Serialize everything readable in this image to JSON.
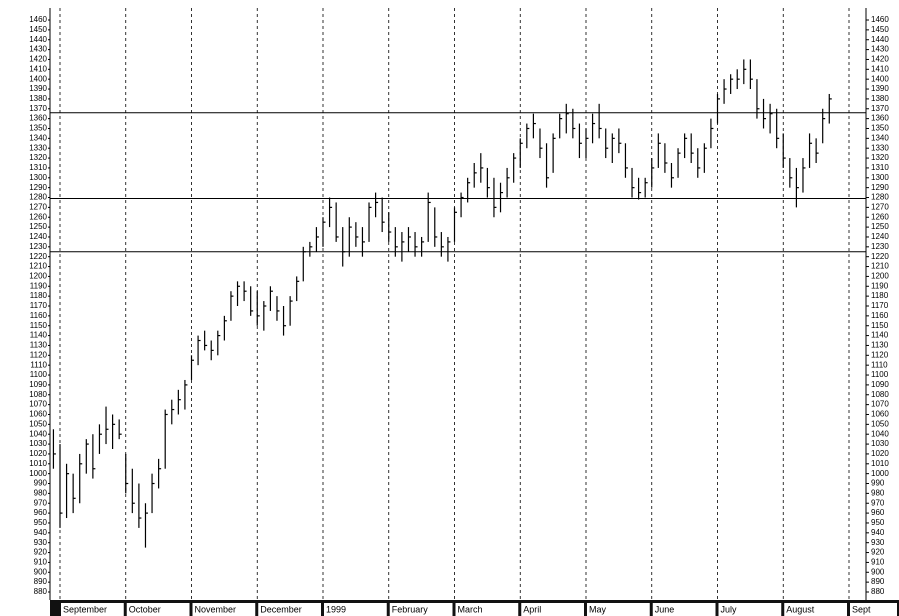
{
  "chart_data": {
    "type": "ohlc",
    "categories": [
      null,
      "September",
      null,
      null,
      null,
      null,
      null,
      null,
      null,
      null,
      null,
      "October",
      null,
      null,
      null,
      null,
      null,
      null,
      null,
      null,
      null,
      "November",
      null,
      null,
      null,
      null,
      null,
      null,
      null,
      null,
      null,
      "December",
      null,
      null,
      null,
      null,
      null,
      null,
      null,
      null,
      null,
      "1999",
      null,
      null,
      null,
      null,
      null,
      null,
      null,
      null,
      null,
      "February",
      null,
      null,
      null,
      null,
      null,
      null,
      null,
      null,
      null,
      "March",
      null,
      null,
      null,
      null,
      null,
      null,
      null,
      null,
      null,
      "April",
      null,
      null,
      null,
      null,
      null,
      null,
      null,
      null,
      null,
      "May",
      null,
      null,
      null,
      null,
      null,
      null,
      null,
      null,
      null,
      "June",
      null,
      null,
      null,
      null,
      null,
      null,
      null,
      null,
      null,
      "July",
      null,
      null,
      null,
      null,
      null,
      null,
      null,
      null,
      null,
      "August",
      null,
      null,
      null,
      null,
      null,
      null,
      null,
      null,
      null,
      "Sept"
    ],
    "high": [
      1045,
      1030,
      1010,
      1000,
      1020,
      1035,
      1040,
      1050,
      1068,
      1060,
      1055,
      1020,
      1005,
      990,
      970,
      1000,
      1015,
      1065,
      1075,
      1085,
      1095,
      1120,
      1140,
      1145,
      1135,
      1145,
      1160,
      1185,
      1195,
      1195,
      1190,
      1185,
      1175,
      1190,
      1180,
      1170,
      1180,
      1200,
      1230,
      1235,
      1250,
      1260,
      1280,
      1275,
      1250,
      1260,
      1255,
      1250,
      1275,
      1285,
      1280,
      1265,
      1250,
      1245,
      1250,
      1245,
      1240,
      1285,
      1270,
      1245,
      1240,
      1270,
      1285,
      1300,
      1315,
      1325,
      1310,
      1300,
      1295,
      1310,
      1325,
      1340,
      1355,
      1365,
      1350,
      1335,
      1345,
      1365,
      1375,
      1370,
      1355,
      1350,
      1365,
      1375,
      1350,
      1345,
      1350,
      1335,
      1310,
      1300,
      1300,
      1320,
      1345,
      1335,
      1315,
      1330,
      1345,
      1345,
      1330,
      1335,
      1360,
      1385,
      1400,
      1405,
      1410,
      1420,
      1420,
      1400,
      1380,
      1375,
      1370,
      1345,
      1320,
      1310,
      1320,
      1345,
      1340,
      1370,
      1385,
      null,
      null,
      null
    ],
    "low": [
      1005,
      945,
      955,
      960,
      970,
      1000,
      995,
      1020,
      1030,
      1025,
      1035,
      980,
      960,
      945,
      925,
      960,
      985,
      1005,
      1050,
      1060,
      1065,
      1095,
      1110,
      1125,
      1115,
      1120,
      1135,
      1155,
      1170,
      1175,
      1160,
      1150,
      1145,
      1165,
      1155,
      1140,
      1150,
      1175,
      1195,
      1220,
      1225,
      1230,
      1250,
      1235,
      1210,
      1220,
      1230,
      1220,
      1235,
      1260,
      1245,
      1235,
      1220,
      1215,
      1225,
      1220,
      1220,
      1235,
      1230,
      1220,
      1215,
      1235,
      1260,
      1275,
      1290,
      1295,
      1280,
      1260,
      1265,
      1280,
      1295,
      1310,
      1330,
      1340,
      1320,
      1290,
      1305,
      1340,
      1345,
      1340,
      1320,
      1320,
      1335,
      1340,
      1320,
      1315,
      1325,
      1300,
      1280,
      1278,
      1280,
      1290,
      1310,
      1305,
      1290,
      1300,
      1320,
      1315,
      1300,
      1305,
      1330,
      1355,
      1375,
      1385,
      1390,
      1395,
      1390,
      1360,
      1350,
      1345,
      1330,
      1310,
      1290,
      1270,
      1285,
      1310,
      1315,
      1335,
      1355,
      null,
      null,
      null
    ],
    "close": [
      1020,
      960,
      1000,
      975,
      1010,
      1030,
      1005,
      1040,
      1045,
      1050,
      1040,
      990,
      970,
      955,
      960,
      990,
      1005,
      1060,
      1065,
      1075,
      1090,
      1115,
      1135,
      1130,
      1125,
      1140,
      1155,
      1180,
      1190,
      1185,
      1165,
      1160,
      1170,
      1185,
      1165,
      1150,
      1175,
      1195,
      1225,
      1230,
      1240,
      1255,
      1270,
      1240,
      1225,
      1250,
      1240,
      1235,
      1270,
      1275,
      1255,
      1245,
      1230,
      1235,
      1240,
      1230,
      1235,
      1275,
      1240,
      1230,
      1235,
      1265,
      1280,
      1295,
      1305,
      1310,
      1290,
      1270,
      1285,
      1300,
      1320,
      1335,
      1350,
      1355,
      1330,
      1300,
      1340,
      1360,
      1365,
      1350,
      1335,
      1340,
      1355,
      1350,
      1330,
      1340,
      1335,
      1310,
      1290,
      1285,
      1295,
      1310,
      1335,
      1315,
      1300,
      1325,
      1340,
      1325,
      1310,
      1330,
      1350,
      1380,
      1390,
      1400,
      1400,
      1410,
      1400,
      1370,
      1360,
      1365,
      1340,
      1320,
      1300,
      1290,
      1310,
      1335,
      1325,
      1360,
      1380,
      null,
      null,
      null
    ],
    "color": "#000000",
    "hlines": [
      1366,
      1279,
      1225
    ],
    "ylim": [
      880,
      1460
    ],
    "yticks": [
      880,
      890,
      900,
      910,
      920,
      930,
      940,
      950,
      960,
      970,
      980,
      990,
      1000,
      1010,
      1020,
      1030,
      1040,
      1050,
      1060,
      1070,
      1080,
      1090,
      1100,
      1110,
      1120,
      1130,
      1140,
      1150,
      1160,
      1170,
      1180,
      1190,
      1200,
      1210,
      1220,
      1230,
      1240,
      1250,
      1260,
      1270,
      1280,
      1290,
      1300,
      1310,
      1320,
      1330,
      1340,
      1350,
      1360,
      1370,
      1380,
      1390,
      1400,
      1410,
      1420,
      1430,
      1440,
      1450,
      1460
    ],
    "grid": false
  }
}
